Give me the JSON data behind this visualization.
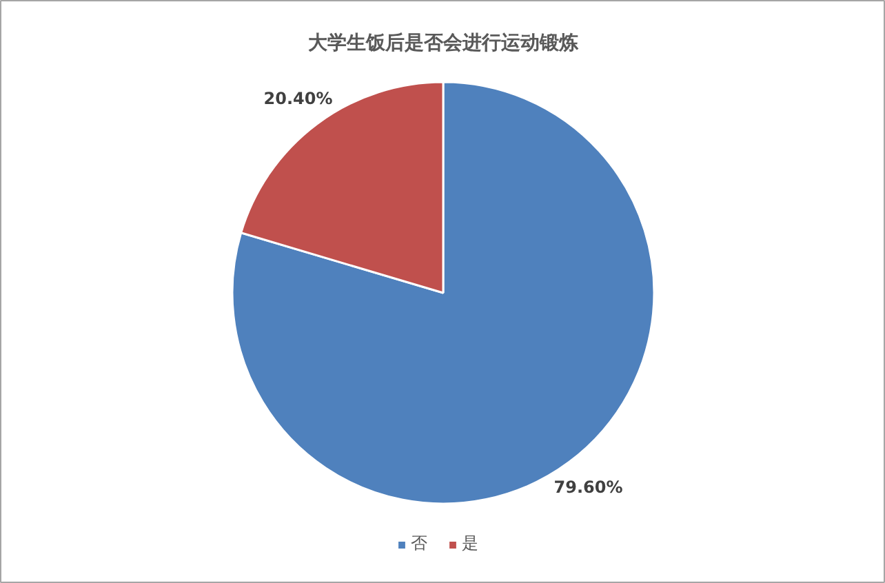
{
  "chart_data": {
    "type": "pie",
    "title": "大学生饭后是否会进行运动锻炼",
    "categories": [
      "否",
      "是"
    ],
    "values": [
      79.6,
      20.4
    ],
    "colors": [
      "#4f81bd",
      "#c0504d"
    ],
    "value_labels": [
      "79.60%",
      "20.40%"
    ],
    "legend": "bottom"
  }
}
